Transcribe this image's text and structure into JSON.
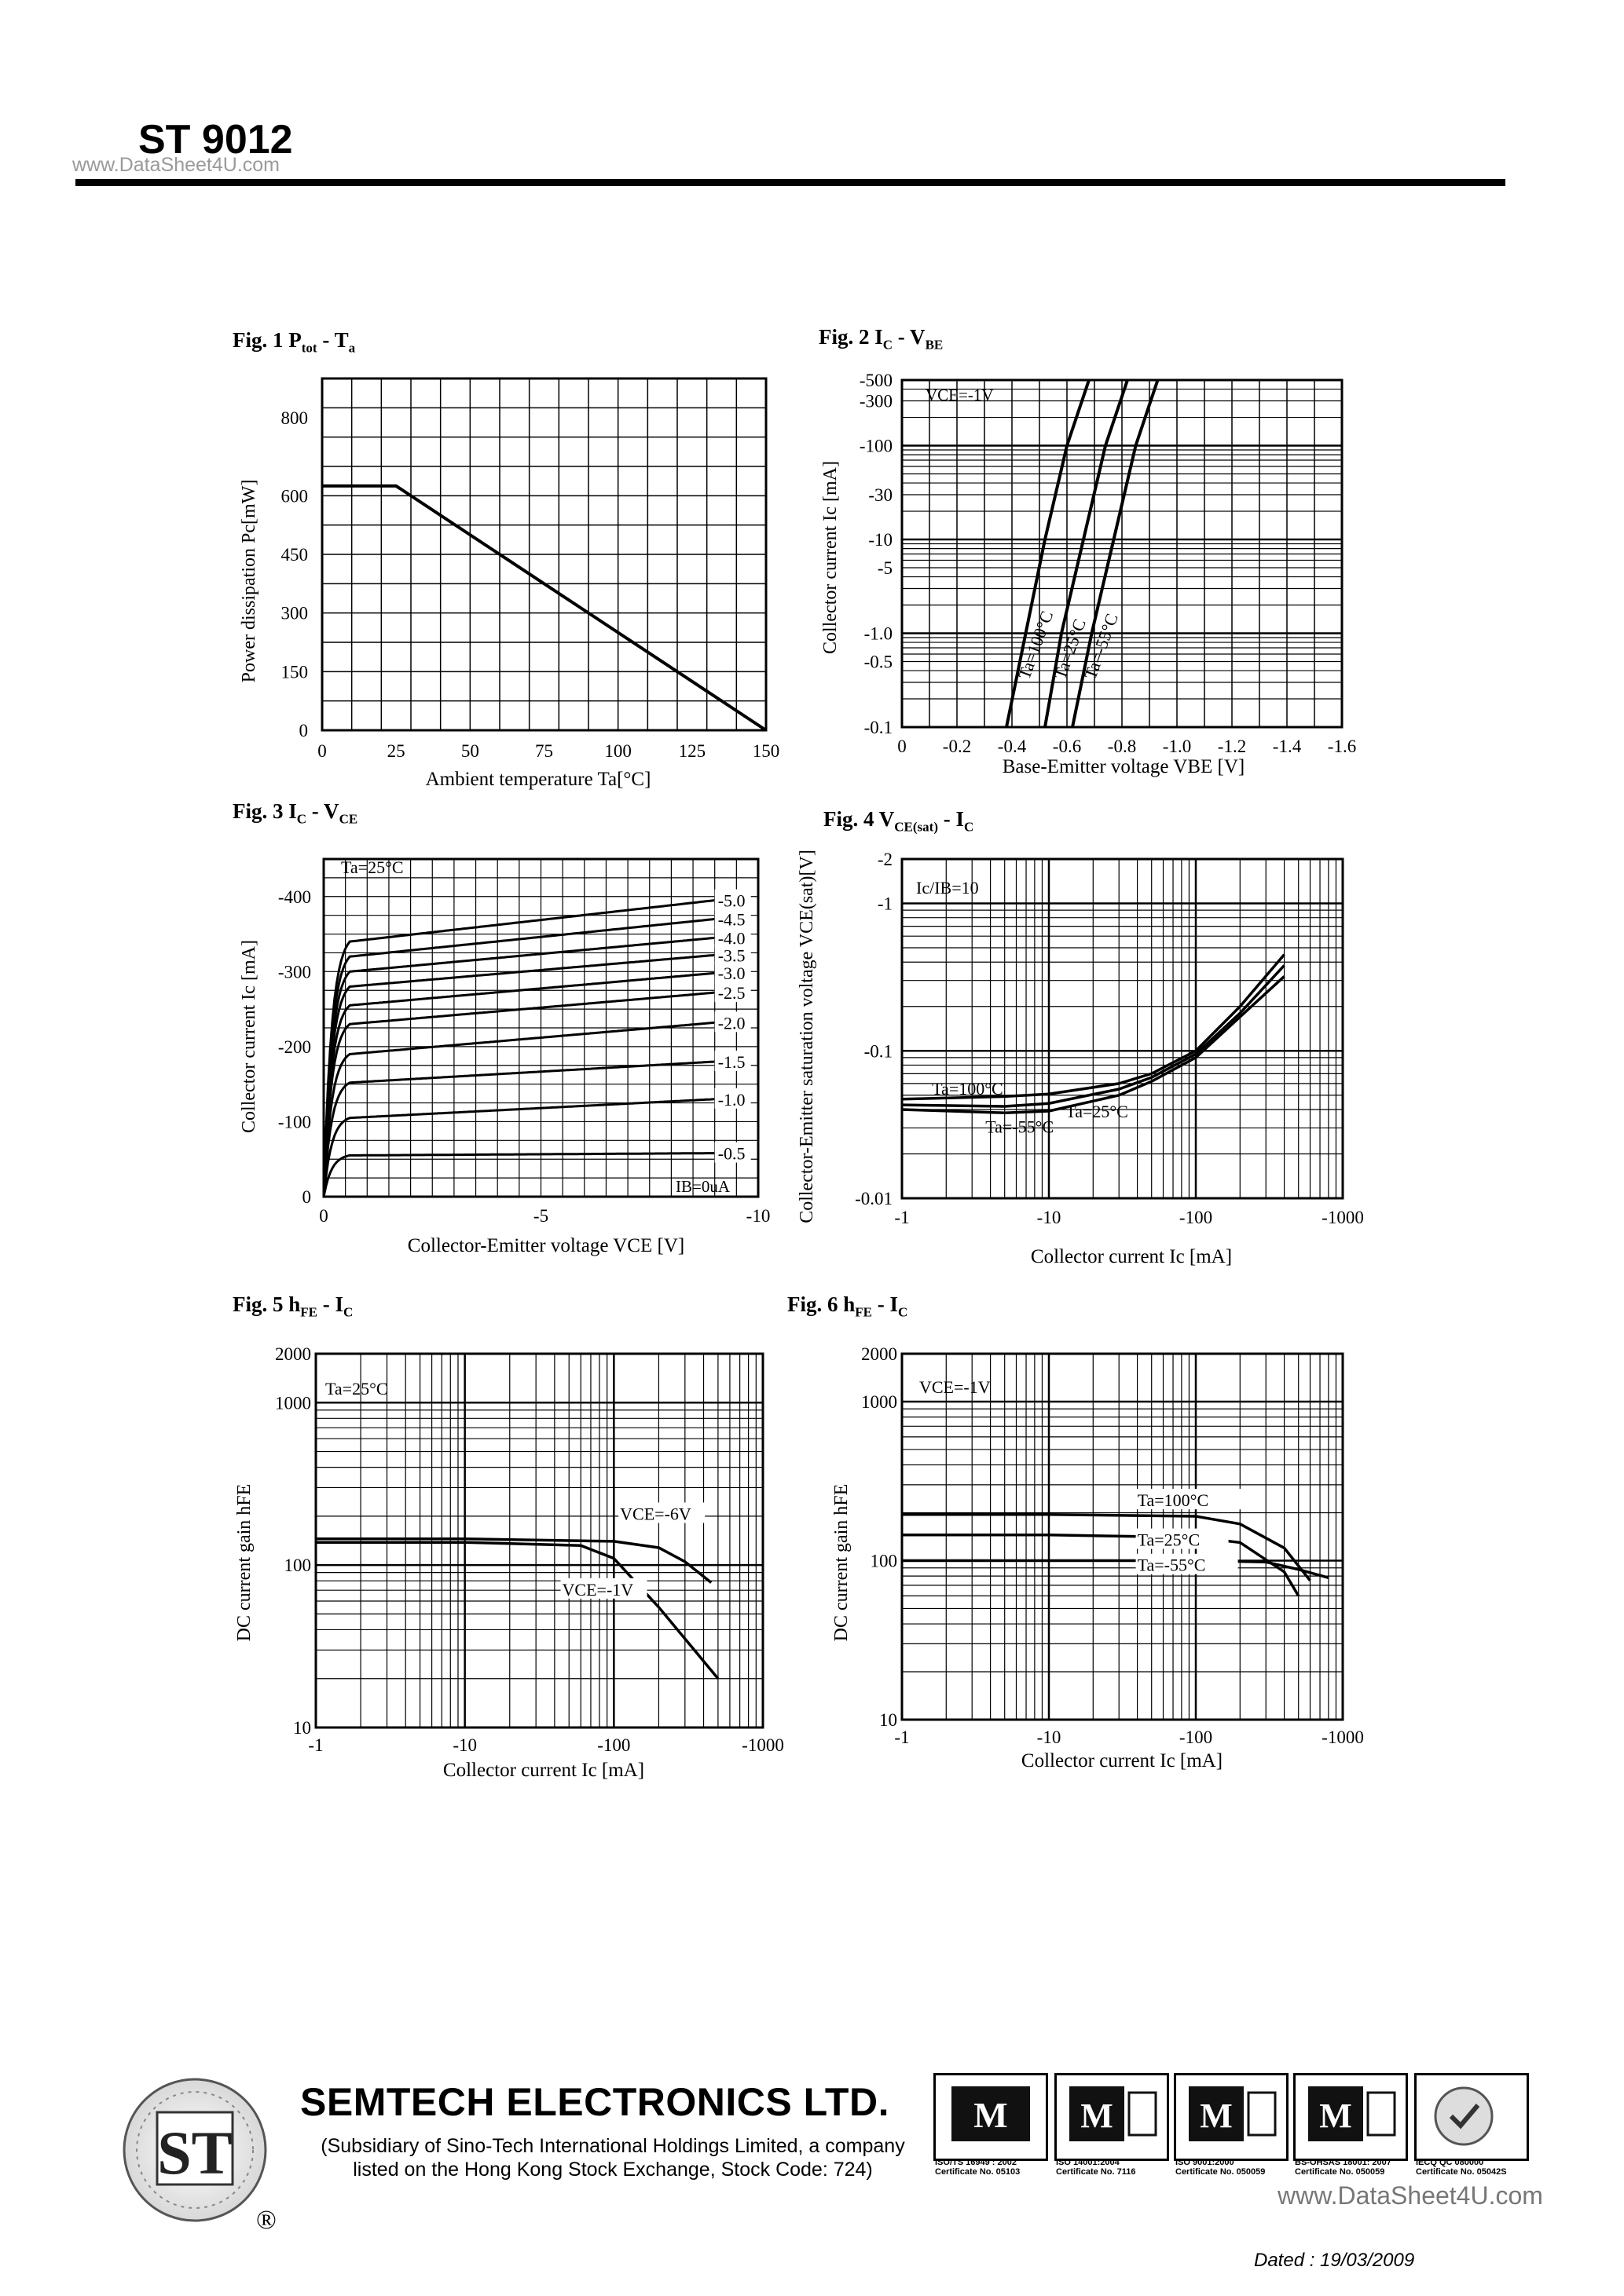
{
  "header": {
    "part_number": "ST 9012",
    "watermark": "www.DataSheet4U.com"
  },
  "figures": [
    {
      "id": "fig1",
      "title_main": "Fig. 1 P",
      "title_sub1": "tot",
      "title_mid": " - T",
      "title_sub2": "a"
    },
    {
      "id": "fig2",
      "title_main": "Fig. 2 I",
      "title_sub1": "C",
      "title_mid": " - V",
      "title_sub2": "BE"
    },
    {
      "id": "fig3",
      "title_main": "Fig. 3 I",
      "title_sub1": "C",
      "title_mid": " - V",
      "title_sub2": "CE"
    },
    {
      "id": "fig4",
      "title_main": "Fig. 4 V",
      "title_sub1": "CE(sat)",
      "title_mid": " - I",
      "title_sub2": "C"
    },
    {
      "id": "fig5",
      "title_main": "Fig. 5 h",
      "title_sub1": "FE",
      "title_mid": " - I",
      "title_sub2": "C"
    },
    {
      "id": "fig6",
      "title_main": "Fig. 6 h",
      "title_sub1": "FE",
      "title_mid": " - I",
      "title_sub2": "C"
    }
  ],
  "chart_data": [
    {
      "type": "line",
      "title": "Fig. 1 Ptot - Ta",
      "xlabel": "Ambient temperature Ta[°C]",
      "ylabel": "Power dissipation Pc[mW]",
      "xlim": [
        0,
        150
      ],
      "ylim": [
        0,
        900
      ],
      "xticks": [
        "0",
        "25",
        "50",
        "75",
        "100",
        "125",
        "150"
      ],
      "yticks": [
        "0",
        "150",
        "300",
        "450",
        "600",
        "800"
      ],
      "series": [
        {
          "name": "Pc",
          "x": [
            0,
            25,
            150
          ],
          "y": [
            625,
            625,
            0
          ]
        }
      ]
    },
    {
      "type": "line",
      "title": "Fig. 2 IC - VBE",
      "xlabel": "Base-Emitter voltage VBE [V]",
      "ylabel": "Collector current Ic [mA]",
      "annotation": "VCE=-1V",
      "xlim": [
        0,
        -1.6
      ],
      "ylim": [
        -0.1,
        -500
      ],
      "yscale": "log",
      "xticks": [
        "0",
        "-0.2",
        "-0.4",
        "-0.6",
        "-0.8",
        "-1.0",
        "-1.2",
        "-1.4",
        "-1.6"
      ],
      "yticks": [
        "-0.1",
        "-0.5",
        "-1.0",
        "-5",
        "-10",
        "-30",
        "-100",
        "-300",
        "-500"
      ],
      "series": [
        {
          "name": "Ta=100°C",
          "x": [
            -0.38,
            -0.45,
            -0.52,
            -0.6,
            -0.68
          ],
          "y": [
            -0.1,
            -1.0,
            -10,
            -100,
            -500
          ]
        },
        {
          "name": "Ta=25°C",
          "x": [
            -0.52,
            -0.58,
            -0.66,
            -0.74,
            -0.82
          ],
          "y": [
            -0.1,
            -1.0,
            -10,
            -100,
            -500
          ]
        },
        {
          "name": "Ta=-55°C",
          "x": [
            -0.62,
            -0.69,
            -0.77,
            -0.85,
            -0.93
          ],
          "y": [
            -0.1,
            -1.0,
            -10,
            -100,
            -500
          ]
        }
      ]
    },
    {
      "type": "line",
      "title": "Fig. 3 IC - VCE",
      "xlabel": "Collector-Emitter voltage VCE [V]",
      "ylabel": "Collector current Ic [mA]",
      "annotation": "Ta=25°C",
      "note": "IB=0uA",
      "xlim": [
        0,
        -10
      ],
      "ylim": [
        0,
        -450
      ],
      "xticks": [
        "0",
        "-5",
        "-10"
      ],
      "yticks": [
        "0",
        "-100",
        "-200",
        "-300",
        "-400"
      ],
      "curve_labels": [
        "-5.0",
        "-4.5",
        "-4.0",
        "-3.5",
        "-3.0",
        "-2.5",
        "-2.0",
        "-1.5",
        "-1.0",
        "-0.5"
      ],
      "series": [
        {
          "name": "-5.0",
          "sat": -340,
          "end": -395
        },
        {
          "name": "-4.5",
          "sat": -320,
          "end": -370
        },
        {
          "name": "-4.0",
          "sat": -300,
          "end": -345
        },
        {
          "name": "-3.5",
          "sat": -280,
          "end": -322
        },
        {
          "name": "-3.0",
          "sat": -255,
          "end": -298
        },
        {
          "name": "-2.5",
          "sat": -230,
          "end": -272
        },
        {
          "name": "-2.0",
          "sat": -190,
          "end": -232
        },
        {
          "name": "-1.5",
          "sat": -152,
          "end": -180
        },
        {
          "name": "-1.0",
          "sat": -105,
          "end": -130
        },
        {
          "name": "-0.5",
          "sat": -55,
          "end": -58
        }
      ]
    },
    {
      "type": "line",
      "title": "Fig. 4 VCE(sat) - IC",
      "xlabel": "Collector current Ic [mA]",
      "ylabel": "Collector-Emitter saturation voltage VCE(sat)[V]",
      "annotation": "Ic/IB=10",
      "xscale": "log",
      "yscale": "log",
      "xlim": [
        -1,
        -1000
      ],
      "ylim": [
        -0.01,
        -2
      ],
      "xticks": [
        "-1",
        "-10",
        "-100",
        "-1000"
      ],
      "yticks": [
        "-0.01",
        "-0.1",
        "-1",
        "-2"
      ],
      "series": [
        {
          "name": "Ta=100°C",
          "x": [
            1,
            5,
            10,
            30,
            50,
            100,
            200,
            400
          ],
          "y": [
            0.047,
            0.049,
            0.051,
            0.06,
            0.07,
            0.1,
            0.2,
            0.45
          ]
        },
        {
          "name": "Ta=25°C",
          "x": [
            1,
            5,
            10,
            30,
            50,
            100,
            200,
            400
          ],
          "y": [
            0.043,
            0.042,
            0.044,
            0.055,
            0.066,
            0.095,
            0.18,
            0.38
          ]
        },
        {
          "name": "Ta=-55°C",
          "x": [
            1,
            5,
            10,
            30,
            50,
            100,
            200,
            400
          ],
          "y": [
            0.04,
            0.038,
            0.039,
            0.05,
            0.062,
            0.09,
            0.17,
            0.32
          ]
        }
      ]
    },
    {
      "type": "line",
      "title": "Fig. 5 hFE - IC",
      "xlabel": "Collector current Ic [mA]",
      "ylabel": "DC current gain hFE",
      "annotation": "Ta=25°C",
      "xscale": "log",
      "yscale": "log",
      "xlim": [
        -1,
        -1000
      ],
      "ylim": [
        10,
        2000
      ],
      "xticks": [
        "-1",
        "-10",
        "-100",
        "-1000"
      ],
      "yticks": [
        "10",
        "100",
        "1000",
        "2000"
      ],
      "series": [
        {
          "name": "VCE=-6V",
          "x": [
            1,
            10,
            100,
            200,
            300,
            450
          ],
          "y": [
            145,
            145,
            140,
            128,
            105,
            78
          ]
        },
        {
          "name": "VCE=-1V",
          "x": [
            1,
            10,
            60,
            100,
            200,
            500
          ],
          "y": [
            138,
            138,
            132,
            110,
            55,
            20
          ]
        }
      ]
    },
    {
      "type": "line",
      "title": "Fig. 6 hFE - IC",
      "xlabel": "Collector current Ic [mA]",
      "ylabel": "DC current gain hFE",
      "annotation": "VCE=-1V",
      "xscale": "log",
      "yscale": "log",
      "xlim": [
        -1,
        -1000
      ],
      "ylim": [
        10,
        2000
      ],
      "xticks": [
        "-1",
        "-10",
        "-100",
        "-1000"
      ],
      "yticks": [
        "10",
        "100",
        "1000",
        "2000"
      ],
      "series": [
        {
          "name": "Ta=100°C",
          "x": [
            1,
            10,
            100,
            200,
            400,
            600
          ],
          "y": [
            195,
            195,
            190,
            170,
            120,
            75
          ]
        },
        {
          "name": "Ta=25°C",
          "x": [
            1,
            10,
            100,
            200,
            400,
            500
          ],
          "y": [
            145,
            145,
            140,
            130,
            85,
            60
          ]
        },
        {
          "name": "Ta=-55°C",
          "x": [
            1,
            10,
            100,
            300,
            500,
            800
          ],
          "y": [
            100,
            100,
            100,
            98,
            88,
            78
          ]
        }
      ]
    }
  ],
  "footer": {
    "company": "SEMTECH ELECTRONICS LTD.",
    "subsidiary_line1": "(Subsidiary of Sino-Tech International Holdings Limited, a company",
    "subsidiary_line2": "listed on the Hong Kong Stock Exchange, Stock Code: 724)",
    "registered": "®",
    "certifications": [
      {
        "line1": "ISO/TS 16949 : 2002",
        "line2": "Certificate No. 05103"
      },
      {
        "line1": "ISO 14001:2004",
        "line2": "Certificate No. 7116"
      },
      {
        "line1": "ISO 9001:2000",
        "line2": "Certificate No. 050059"
      },
      {
        "line1": "BS-OHSAS 18001: 2007",
        "line2": "Certificate No. 050059"
      },
      {
        "line1": "IECQ QC 080000",
        "line2": "Certificate No. 05042S"
      }
    ],
    "watermark": "www.DataSheet4U.com",
    "dated": "Dated : 19/03/2009"
  }
}
